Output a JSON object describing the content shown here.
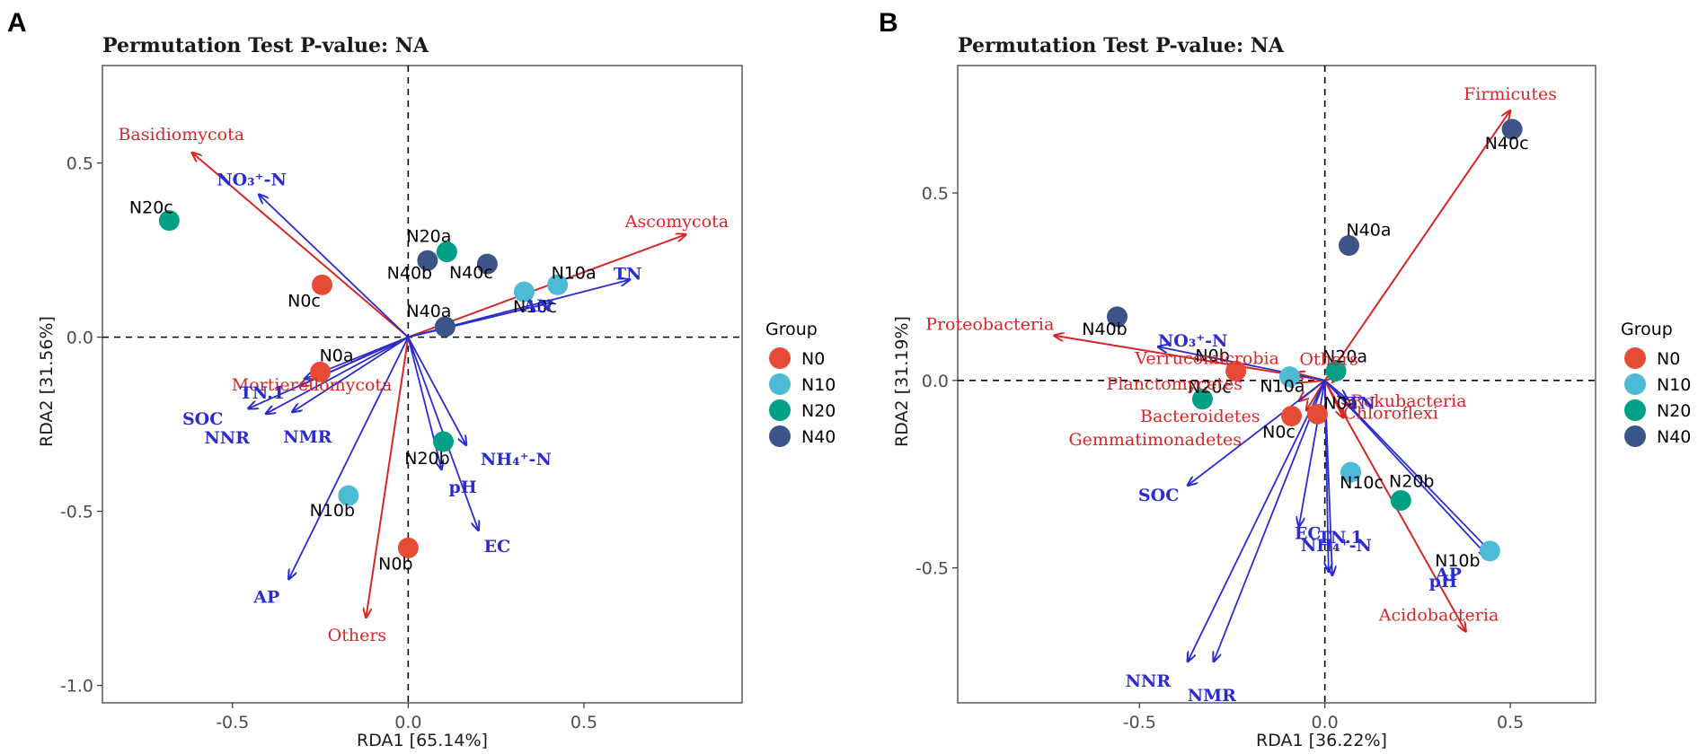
{
  "colors": {
    "N0": "#E64B35",
    "N10": "#4DBBD5",
    "N20": "#00A087",
    "N40": "#3C5488",
    "species_arrow": "#D62728",
    "env_arrow": "#2B2BD0"
  },
  "legend": {
    "title": "Group",
    "items": [
      "N0",
      "N10",
      "N20",
      "N40"
    ]
  },
  "chart_data": [
    {
      "type": "scatter",
      "panel": "A",
      "title": "Permutation Test P-value: NA",
      "xlabel": "RDA1 [65.14%]",
      "ylabel": "RDA2 [31.56%]",
      "xlim": [
        -0.87,
        0.95
      ],
      "ylim": [
        -1.05,
        0.78
      ],
      "xticks": [
        -0.5,
        0.0,
        0.5
      ],
      "xtick_labels": [
        "-0.5",
        "0.0",
        "0.5"
      ],
      "yticks": [
        -1.0,
        -0.5,
        0.0,
        0.5
      ],
      "ytick_labels": [
        "-1.0",
        "-0.5",
        "0.0",
        "0.5"
      ],
      "points": [
        {
          "label": "N20c",
          "group": "N20",
          "x": -0.68,
          "y": 0.335
        },
        {
          "label": "N0c",
          "group": "N0",
          "x": -0.245,
          "y": 0.15
        },
        {
          "label": "N20a",
          "group": "N20",
          "x": 0.11,
          "y": 0.245
        },
        {
          "label": "N40b",
          "group": "N40",
          "x": 0.055,
          "y": 0.22
        },
        {
          "label": "N40c",
          "group": "N40",
          "x": 0.225,
          "y": 0.21
        },
        {
          "label": "N10a",
          "group": "N10",
          "x": 0.425,
          "y": 0.15
        },
        {
          "label": "N10c",
          "group": "N10",
          "x": 0.33,
          "y": 0.13
        },
        {
          "label": "N40a",
          "group": "N40",
          "x": 0.105,
          "y": 0.03
        },
        {
          "label": "N0a",
          "group": "N0",
          "x": -0.25,
          "y": -0.1
        },
        {
          "label": "N20b",
          "group": "N20",
          "x": 0.1,
          "y": -0.3
        },
        {
          "label": "N10b",
          "group": "N10",
          "x": -0.17,
          "y": -0.455
        },
        {
          "label": "N0b",
          "group": "N0",
          "x": 0.0,
          "y": -0.605
        }
      ],
      "species": [
        {
          "name": "Basidiomycota",
          "x": -0.615,
          "y": 0.53
        },
        {
          "name": "Ascomycota",
          "x": 0.79,
          "y": 0.295
        },
        {
          "name": "Mortierellomycota",
          "x": -0.31,
          "y": -0.14
        },
        {
          "name": "Others",
          "x": -0.12,
          "y": -0.805
        }
      ],
      "env": [
        {
          "name": "NO₃⁺-N",
          "x": -0.425,
          "y": 0.41
        },
        {
          "name": "TN",
          "x": 0.63,
          "y": 0.165
        },
        {
          "name": "AN",
          "x": 0.41,
          "y": 0.1
        },
        {
          "name": "TN.1",
          "x": -0.295,
          "y": -0.12
        },
        {
          "name": "SOC",
          "x": -0.455,
          "y": -0.205
        },
        {
          "name": "NNR",
          "x": -0.405,
          "y": -0.22
        },
        {
          "name": "NMR",
          "x": -0.33,
          "y": -0.215
        },
        {
          "name": "NH₄⁺-N",
          "x": 0.165,
          "y": -0.31
        },
        {
          "name": "pH",
          "x": 0.095,
          "y": -0.38
        },
        {
          "name": "EC",
          "x": 0.2,
          "y": -0.555
        },
        {
          "name": "AP",
          "x": -0.34,
          "y": -0.695
        }
      ]
    },
    {
      "type": "scatter",
      "panel": "B",
      "title": "Permutation Test P-value: NA",
      "xlabel": "RDA1 [36.22%]",
      "ylabel": "RDA2 [31.19%]",
      "xlim": [
        -0.99,
        0.73
      ],
      "ylim": [
        -0.86,
        0.84
      ],
      "xticks": [
        -0.5,
        0.0,
        0.5
      ],
      "xtick_labels": [
        "-0.5",
        "0.0",
        "0.5"
      ],
      "yticks": [
        -0.5,
        0.0,
        0.5
      ],
      "ytick_labels": [
        "-0.5",
        "0.0",
        "0.5"
      ],
      "points": [
        {
          "label": "N40c",
          "group": "N40",
          "x": 0.505,
          "y": 0.67
        },
        {
          "label": "N40a",
          "group": "N40",
          "x": 0.065,
          "y": 0.36
        },
        {
          "label": "N40b",
          "group": "N40",
          "x": -0.56,
          "y": 0.17
        },
        {
          "label": "N20a",
          "group": "N20",
          "x": 0.03,
          "y": 0.025
        },
        {
          "label": "N0b",
          "group": "N0",
          "x": -0.24,
          "y": 0.025
        },
        {
          "label": "N10a",
          "group": "N10",
          "x": -0.095,
          "y": 0.01
        },
        {
          "label": "N20c",
          "group": "N20",
          "x": -0.33,
          "y": -0.05
        },
        {
          "label": "N0c",
          "group": "N0",
          "x": -0.09,
          "y": -0.095
        },
        {
          "label": "N0a",
          "group": "N0",
          "x": -0.02,
          "y": -0.09
        },
        {
          "label": "N10c",
          "group": "N10",
          "x": 0.07,
          "y": -0.245
        },
        {
          "label": "N20b",
          "group": "N20",
          "x": 0.205,
          "y": -0.32
        },
        {
          "label": "N10b",
          "group": "N10",
          "x": 0.445,
          "y": -0.455
        }
      ],
      "species": [
        {
          "name": "Firmicutes",
          "x": 0.5,
          "y": 0.72
        },
        {
          "name": "Proteobacteria",
          "x": -0.73,
          "y": 0.12
        },
        {
          "name": "Verrucomicrobia",
          "x": -0.08,
          "y": 0.02
        },
        {
          "name": "Planctomycetes",
          "x": -0.11,
          "y": -0.01
        },
        {
          "name": "Bacteroidetes",
          "x": -0.07,
          "y": -0.055
        },
        {
          "name": "Gemmatimonadetes",
          "x": -0.05,
          "y": -0.08
        },
        {
          "name": "Others",
          "x": 0.04,
          "y": 0.01
        },
        {
          "name": "Rokubacteria",
          "x": 0.07,
          "y": -0.07
        },
        {
          "name": "Chloroflexi",
          "x": 0.05,
          "y": -0.1
        },
        {
          "name": "Acidobacteria",
          "x": 0.38,
          "y": -0.67
        }
      ],
      "env": [
        {
          "name": "NO₃⁺-N",
          "x": -0.45,
          "y": 0.09
        },
        {
          "name": "TN",
          "x": 0.06,
          "y": -0.05
        },
        {
          "name": "SOC",
          "x": -0.37,
          "y": -0.28
        },
        {
          "name": "EC",
          "x": -0.07,
          "y": -0.39
        },
        {
          "name": "TN.1",
          "x": 0.01,
          "y": -0.51
        },
        {
          "name": "NH₄⁺-N",
          "x": 0.02,
          "y": -0.52
        },
        {
          "name": "AP",
          "x": 0.45,
          "y": -0.46
        },
        {
          "name": "pH",
          "x": 0.44,
          "y": -0.47
        },
        {
          "name": "NNR",
          "x": -0.37,
          "y": -0.75
        },
        {
          "name": "NMR",
          "x": -0.3,
          "y": -0.75
        }
      ]
    }
  ]
}
